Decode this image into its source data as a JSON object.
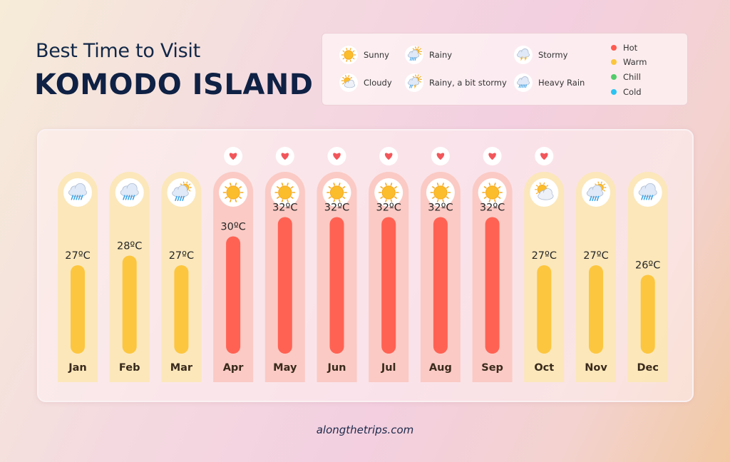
{
  "header": {
    "subtitle": "Best Time to Visit",
    "title": "KOMODO ISLAND"
  },
  "legend": {
    "weather": [
      {
        "key": "sunny",
        "label": "Sunny",
        "icon": "sun-icon"
      },
      {
        "key": "cloudy",
        "label": "Cloudy",
        "icon": "sun-cloud-icon"
      },
      {
        "key": "rainy",
        "label": "Rainy",
        "icon": "sun-rain-cloud-icon"
      },
      {
        "key": "rainy_stormy",
        "label": "Rainy, a bit stormy",
        "icon": "rain-lightning-icon"
      },
      {
        "key": "stormy",
        "label": "Stormy",
        "icon": "storm-cloud-icon"
      },
      {
        "key": "heavy_rain",
        "label": "Heavy Rain",
        "icon": "heavy-rain-cloud-icon"
      }
    ],
    "temperature": [
      {
        "key": "hot",
        "label": "Hot",
        "color": "#ff5a4f"
      },
      {
        "key": "warm",
        "label": "Warm",
        "color": "#fbc63c"
      },
      {
        "key": "chill",
        "label": "Chill",
        "color": "#52cc6a"
      },
      {
        "key": "cold",
        "label": "Cold",
        "color": "#2bc4f2"
      }
    ]
  },
  "chart_data": {
    "type": "bar",
    "categories": [
      "Jan",
      "Feb",
      "Mar",
      "Apr",
      "May",
      "Jun",
      "Jul",
      "Aug",
      "Sep",
      "Oct",
      "Nov",
      "Dec"
    ],
    "values": [
      27,
      28,
      27,
      30,
      32,
      32,
      32,
      32,
      32,
      27,
      27,
      26
    ],
    "value_labels": [
      "27ºC",
      "28ºC",
      "27ºC",
      "30ºC",
      "32ºC",
      "32ºC",
      "32ºC",
      "32ºC",
      "32ºC",
      "27ºC",
      "27ºC",
      "26ºC"
    ],
    "unit": "ºC",
    "temperature_category": [
      "warm",
      "warm",
      "warm",
      "hot",
      "hot",
      "hot",
      "hot",
      "hot",
      "hot",
      "warm",
      "warm",
      "warm"
    ],
    "weather": [
      "heavy_rain",
      "heavy_rain",
      "rainy",
      "sunny",
      "sunny",
      "sunny",
      "sunny",
      "sunny",
      "sunny",
      "cloudy",
      "rainy",
      "heavy_rain"
    ],
    "recommended": [
      false,
      false,
      false,
      true,
      true,
      true,
      true,
      true,
      true,
      true,
      false,
      false
    ],
    "recommended_icon": "heart-icon",
    "colors": {
      "hot_bar": "#ff6253",
      "hot_bg": "#fbc8c2",
      "warm_bar": "#fcc63f",
      "warm_bg": "#fbe7b5"
    }
  },
  "footer": {
    "url": "alongthetrips.com"
  }
}
